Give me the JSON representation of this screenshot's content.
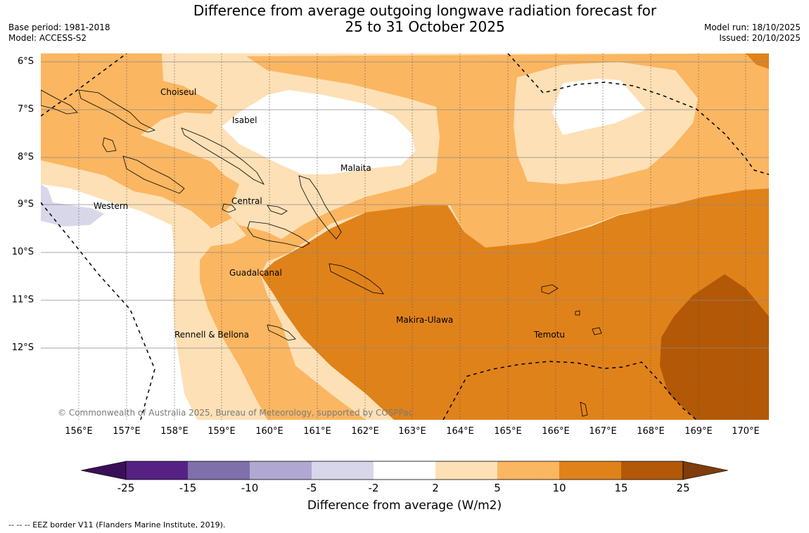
{
  "header": {
    "title_line1": "Difference from average outgoing longwave radiation forecast for",
    "title_line2": "25 to 31 October 2025",
    "base_period": "Base period: 1981-2018",
    "model": "Model: ACCESS-S2",
    "model_run": "Model run: 18/10/2025",
    "issued": "Issued: 20/10/2025"
  },
  "map": {
    "lat_labels": [
      "6°S",
      "7°S",
      "8°S",
      "9°S",
      "10°S",
      "11°S",
      "12°S"
    ],
    "lon_labels": [
      "156°E",
      "157°E",
      "158°E",
      "159°E",
      "160°E",
      "161°E",
      "162°E",
      "163°E",
      "164°E",
      "165°E",
      "166°E",
      "167°E",
      "168°E",
      "169°E",
      "170°E"
    ],
    "regions": [
      "Choiseul",
      "Isabel",
      "Malaita",
      "Western",
      "Central",
      "Guadalcanal",
      "Makira-Ulawa",
      "Rennell & Bellona",
      "Temotu"
    ],
    "copyright": "© Commonwealth of Australia 2025, Bureau of Meteorology, supported by COSPPac"
  },
  "colorbar": {
    "ticks": [
      "-25",
      "-15",
      "-10",
      "-5",
      "-2",
      "2",
      "5",
      "10",
      "15",
      "25"
    ],
    "label": "Difference from average (W/m2)",
    "colors": [
      "#3b0f57",
      "#552284",
      "#7f6fab",
      "#b0a8d2",
      "#d8d7ea",
      "#ffffff",
      "#fee0b6",
      "#fbb661",
      "#e0821a",
      "#b35806",
      "#7e3d0a"
    ]
  },
  "footnote": "--  --  -- EEZ border V11 (Flanders Marine Institute, 2019)."
}
